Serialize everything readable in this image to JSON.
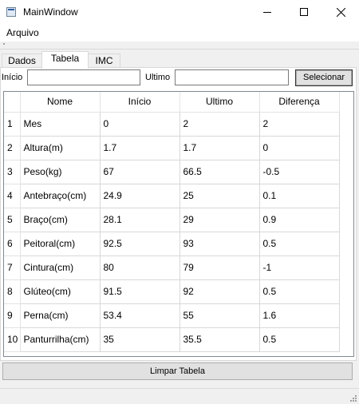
{
  "window": {
    "title": "MainWindow"
  },
  "menu": {
    "items": [
      "Arquivo"
    ]
  },
  "tabs": [
    {
      "label": "Dados"
    },
    {
      "label": "Tabela"
    },
    {
      "label": "IMC"
    }
  ],
  "filter": {
    "inicio_label": "Início",
    "inicio_value": "",
    "ultimo_label": "Ultimo",
    "ultimo_value": "",
    "select_button": "Selecionar"
  },
  "table": {
    "headers": [
      "Nome",
      "Início",
      "Ultimo",
      "Diferença"
    ],
    "rows": [
      {
        "n": "1",
        "nome": "Mes",
        "inicio": "0",
        "ultimo": "2",
        "diferenca": "2"
      },
      {
        "n": "2",
        "nome": "Altura(m)",
        "inicio": "1.7",
        "ultimo": "1.7",
        "diferenca": "0"
      },
      {
        "n": "3",
        "nome": "Peso(kg)",
        "inicio": "67",
        "ultimo": "66.5",
        "diferenca": "-0.5"
      },
      {
        "n": "4",
        "nome": "Antebraço(cm)",
        "inicio": "24.9",
        "ultimo": "25",
        "diferenca": "0.1"
      },
      {
        "n": "5",
        "nome": "Braço(cm)",
        "inicio": "28.1",
        "ultimo": "29",
        "diferenca": "0.9"
      },
      {
        "n": "6",
        "nome": "Peitoral(cm)",
        "inicio": "92.5",
        "ultimo": "93",
        "diferenca": "0.5"
      },
      {
        "n": "7",
        "nome": "Cintura(cm)",
        "inicio": "80",
        "ultimo": "79",
        "diferenca": "-1"
      },
      {
        "n": "8",
        "nome": "Glúteo(cm)",
        "inicio": "91.5",
        "ultimo": "92",
        "diferenca": "0.5"
      },
      {
        "n": "9",
        "nome": "Perna(cm)",
        "inicio": "53.4",
        "ultimo": "55",
        "diferenca": "1.6"
      },
      {
        "n": "10",
        "nome": "Panturrilha(cm)",
        "inicio": "35",
        "ultimo": "35.5",
        "diferenca": "0.5"
      }
    ]
  },
  "actions": {
    "clear_button": "Limpar Tabela"
  },
  "icons": {
    "app": "app-window-icon",
    "minimize": "minimize-icon",
    "maximize": "maximize-icon",
    "close": "close-icon",
    "grip": "resize-grip-icon"
  }
}
